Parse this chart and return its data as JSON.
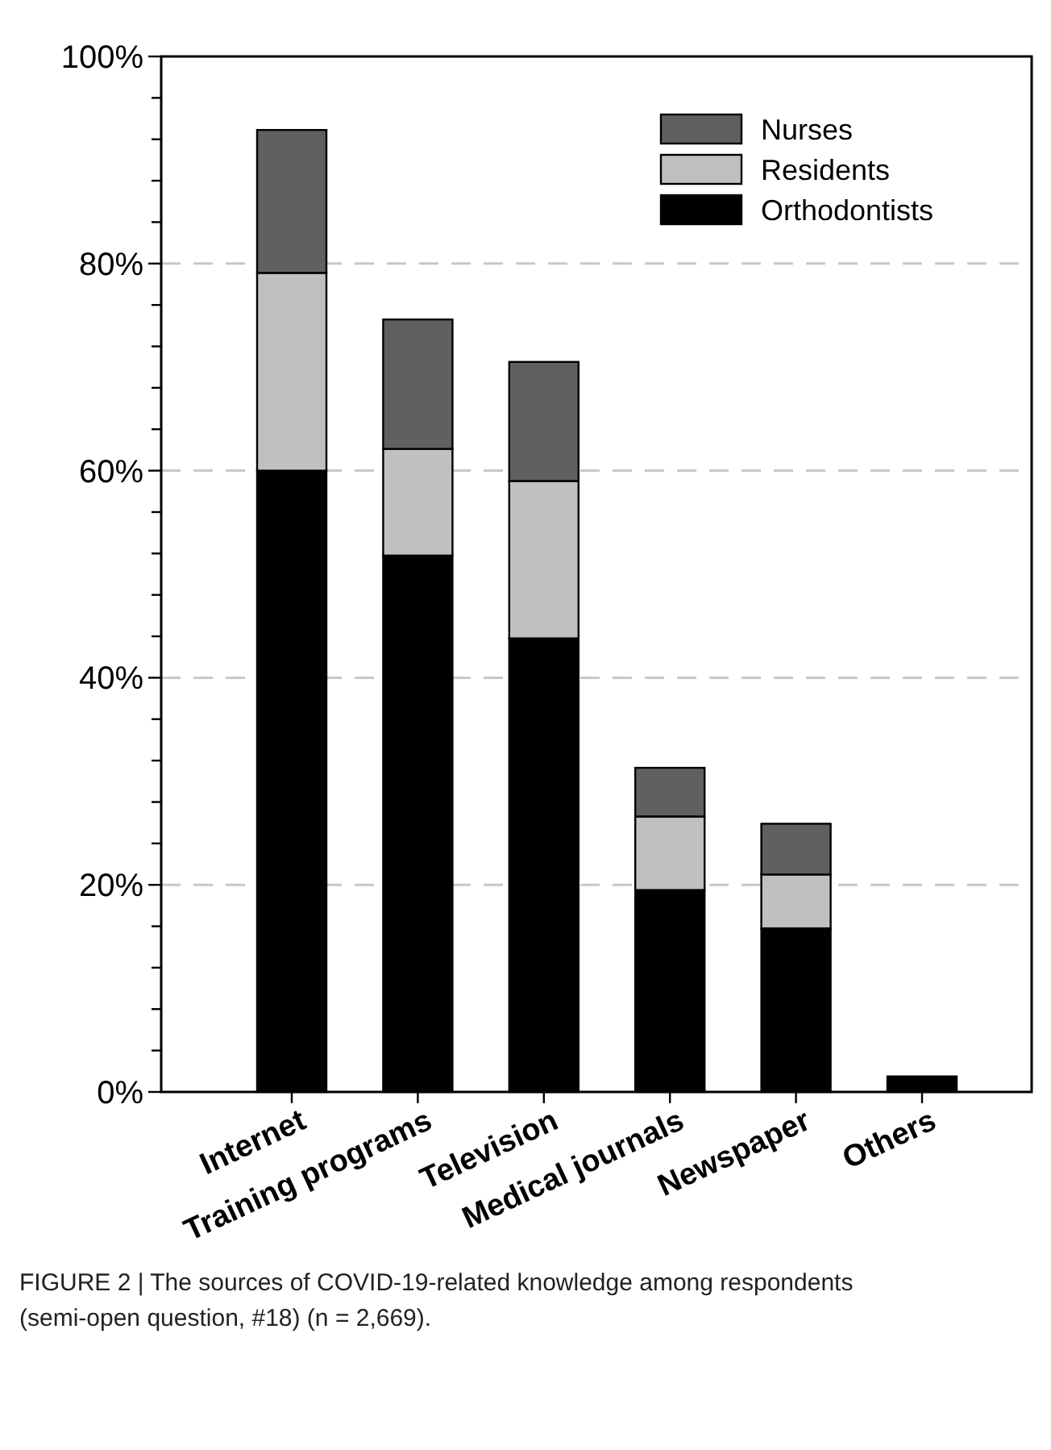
{
  "chart_data": {
    "type": "bar",
    "stacked": true,
    "categories": [
      "Internet",
      "Training programs",
      "Television",
      "Medical journals",
      "Newspaper",
      "Others"
    ],
    "series": [
      {
        "name": "Orthodontists",
        "color": "#000000",
        "values": [
          60.0,
          51.8,
          43.8,
          19.5,
          15.8,
          1.5
        ]
      },
      {
        "name": "Residents",
        "color": "#c0c0c0",
        "values": [
          19.1,
          10.3,
          15.2,
          7.1,
          5.2,
          0
        ]
      },
      {
        "name": "Nurses",
        "color": "#606060",
        "values": [
          13.8,
          12.5,
          11.5,
          4.7,
          4.9,
          0
        ]
      }
    ],
    "ylim": [
      0,
      100
    ],
    "yticks": [
      {
        "value": 0,
        "label": "0%"
      },
      {
        "value": 4,
        "label": null
      },
      {
        "value": 8,
        "label": null
      },
      {
        "value": 12,
        "label": null
      },
      {
        "value": 16,
        "label": null
      },
      {
        "value": 20,
        "label": "20%"
      },
      {
        "value": 24,
        "label": null
      },
      {
        "value": 28,
        "label": null
      },
      {
        "value": 32,
        "label": null
      },
      {
        "value": 36,
        "label": null
      },
      {
        "value": 40,
        "label": "40%"
      },
      {
        "value": 44,
        "label": null
      },
      {
        "value": 48,
        "label": null
      },
      {
        "value": 52,
        "label": null
      },
      {
        "value": 56,
        "label": null
      },
      {
        "value": 60,
        "label": "60%"
      },
      {
        "value": 64,
        "label": null
      },
      {
        "value": 68,
        "label": null
      },
      {
        "value": 72,
        "label": null
      },
      {
        "value": 76,
        "label": null
      },
      {
        "value": 80,
        "label": "80%"
      },
      {
        "value": 84,
        "label": null
      },
      {
        "value": 88,
        "label": null
      },
      {
        "value": 92,
        "label": null
      },
      {
        "value": 96,
        "label": null
      },
      {
        "value": 100,
        "label": "100%"
      }
    ],
    "grid": "y",
    "legend": "top right",
    "annotations": [
      "FIGURE 2 | The sources of COVID-19-related knowledge among respondents (semi-open question, #18) (n = 2,669)."
    ]
  }
}
